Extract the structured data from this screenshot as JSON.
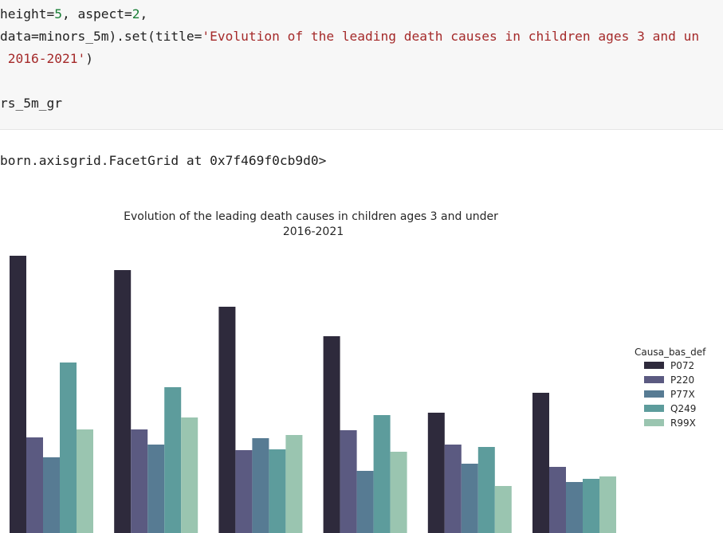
{
  "code": {
    "line1": {
      "a": "height=",
      "b": "5",
      "c": ", aspect=",
      "d": "2",
      "e": ","
    },
    "line2": {
      "a": "data=minors_5m).set(title=",
      "b": "'Evolution of the leading death causes in children ages 3 and un"
    },
    "line3": {
      "a": " 2016-2021'",
      "b": ")"
    },
    "line4": "rs_5m_gr"
  },
  "output": {
    "repr": "born.axisgrid.FacetGrid at 0x7f469f0cb9d0>"
  },
  "chart_data": {
    "type": "bar",
    "title": "Evolution of the leading death causes in children ages 3 and under\n2016-2021",
    "title_lines": [
      "Evolution of the leading death causes in children ages 3 and under",
      "2016-2021"
    ],
    "categories": [
      "",
      "",
      "",
      "",
      "",
      ""
    ],
    "series": [
      {
        "name": "P072",
        "color": "#2e2a3c",
        "values": [
          348,
          330,
          284,
          247,
          151,
          176
        ]
      },
      {
        "name": "P220",
        "color": "#5b5a81",
        "values": [
          120,
          130,
          104,
          129,
          111,
          83
        ]
      },
      {
        "name": "P77X",
        "color": "#577b93",
        "values": [
          95,
          111,
          119,
          78,
          87,
          64
        ]
      },
      {
        "name": "Q249",
        "color": "#5d9c9c",
        "values": [
          214,
          183,
          105,
          148,
          108,
          68
        ]
      },
      {
        "name": "R99X",
        "color": "#9ac5b0",
        "values": [
          130,
          145,
          123,
          102,
          59,
          71
        ]
      }
    ],
    "ylim": [
      0,
      350
    ],
    "legend": {
      "title": "Causa_bas_def",
      "placement": "right"
    }
  }
}
